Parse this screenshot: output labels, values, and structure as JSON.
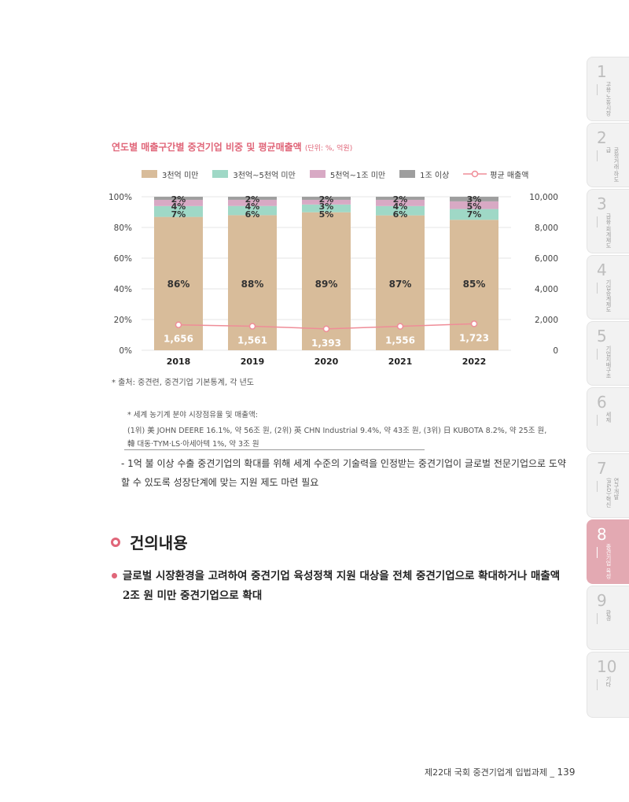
{
  "side_tabs": [
    {
      "num": "1",
      "label": "고용·노동시장"
    },
    {
      "num": "2",
      "label": "공정거래·하도급"
    },
    {
      "num": "3",
      "label": "금융·회계제도"
    },
    {
      "num": "4",
      "label": "기업승계제도"
    },
    {
      "num": "5",
      "label": "기업지배구조"
    },
    {
      "num": "6",
      "label": "세제"
    },
    {
      "num": "7",
      "label": "연구개발(R&D)·혁신"
    },
    {
      "num": "8",
      "label": "중견기업 육성"
    },
    {
      "num": "9",
      "label": "환경"
    },
    {
      "num": "10",
      "label": "기타"
    }
  ],
  "chart_title": "연도별 매출구간별 중견기업 비중 및 평균매출액",
  "chart_unit": "(단위: %, 억원)",
  "colors": {
    "s1": "#d8bc9a",
    "s2": "#9fd8c6",
    "s3": "#d8a9c4",
    "s4": "#9e9e9e",
    "line": "#ef8d98",
    "accent": "#e06679"
  },
  "chart_data": {
    "type": "bar",
    "stacked": true,
    "categories": [
      "2018",
      "2019",
      "2020",
      "2021",
      "2022"
    ],
    "series": [
      {
        "name": "3천억 미만",
        "values": [
          86,
          88,
          89,
          87,
          85
        ]
      },
      {
        "name": "3천억~5천억 미만",
        "values": [
          7,
          6,
          5,
          6,
          7
        ]
      },
      {
        "name": "5천억~1조 미만",
        "values": [
          4,
          4,
          3,
          4,
          5
        ]
      },
      {
        "name": "1조 이상",
        "values": [
          2,
          2,
          2,
          2,
          3
        ]
      }
    ],
    "line_series": {
      "name": "평균 매출액",
      "values": [
        1656,
        1561,
        1393,
        1556,
        1723
      ]
    },
    "y_left_ticks": [
      "0%",
      "20%",
      "40%",
      "60%",
      "80%",
      "100%"
    ],
    "y_right_ticks": [
      "0",
      "2,000",
      "4,000",
      "6,000",
      "8,000",
      "10,000"
    ],
    "ylim": [
      0,
      100
    ],
    "y2lim": [
      0,
      10000
    ],
    "legend_position": "top"
  },
  "source": "* 출처: 중견련, 중견기업 기본통계, 각 년도",
  "note_lines": [
    "* 세계 농기계 분야 시장점유율 및 매출액:",
    "(1위) 美 JOHN DEERE 16.1%, 약 56조 원, (2위) 英 CHN Industrial 9.4%, 약 43조 원, (3위) 日 KUBOTA 8.2%, 약 25조 원,",
    "韓 대동·TYM·LS·아세아텍 1%, 약 3조 원"
  ],
  "dash_para": "- 1억 불 이상 수출 중견기업의 확대를 위해 세계 수준의 기술력을 인정받는 중견기업이 글로벌 전문기업으로 도약할 수 있도록 성장단계에 맞는 지원 제도 마련 필요",
  "section_title": "건의내용",
  "bullet_para": "글로벌 시장환경을 고려하여 중견기업 육성정책 지원 대상을 전체 중견기업으로 확대하거나 매출액 2조 원 미만 중견기업으로 확대",
  "footer_text": "제22대 국회 중견기업계 입법과제 _",
  "page_number": "139"
}
